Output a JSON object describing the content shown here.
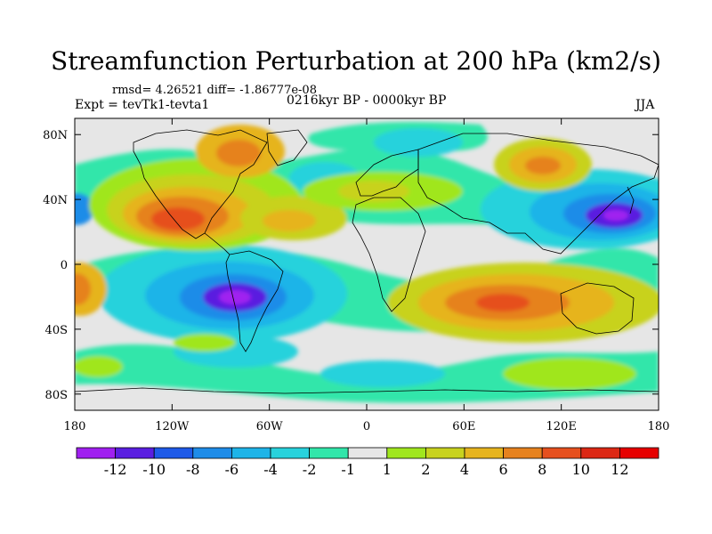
{
  "title": "Streamfunction Perturbation at 200 hPa (km2/s)",
  "stats": "rmsd= 4.26521 diff= -1.86777e-08",
  "experiment": "Expt = tevTk1-tevta1",
  "period": "0216kyr BP - 0000kyr BP",
  "season": "JJA",
  "chart_data": {
    "type": "heatmap",
    "projection": "cylindrical-equidistant",
    "x_ticks": [
      "180",
      "120W",
      "60W",
      "0",
      "60E",
      "120E",
      "180"
    ],
    "y_ticks": [
      "80N",
      "40N",
      "0",
      "40S",
      "80S"
    ],
    "x_range": [
      -180,
      180
    ],
    "y_range": [
      -90,
      90
    ],
    "colorbar": {
      "levels": [
        "-12",
        "-10",
        "-8",
        "-6",
        "-4",
        "-2",
        "-1",
        "1",
        "2",
        "4",
        "6",
        "8",
        "10",
        "12"
      ],
      "colors": [
        "#a020f0",
        "#5a1ee0",
        "#1e5ae8",
        "#1e8ce8",
        "#1eb4e8",
        "#28d2dc",
        "#32e6aa",
        "#e6e6e6",
        "#a0e61e",
        "#c8d21e",
        "#e6b41e",
        "#e6821e",
        "#e6501e",
        "#dc2814",
        "#e60000"
      ]
    },
    "features": [
      {
        "name": "south-america-low",
        "lon": -80,
        "lat": -22,
        "value": -12
      },
      {
        "name": "west-pacific-low",
        "lon": 155,
        "lat": 30,
        "value": -12
      },
      {
        "name": "north-america-high",
        "lon": -110,
        "lat": 30,
        "value": 10
      },
      {
        "name": "indian-ocean-high",
        "lon": 95,
        "lat": -20,
        "value": 8
      },
      {
        "name": "south-pacific-high-west",
        "lon": -175,
        "lat": -20,
        "value": 6
      },
      {
        "name": "central-asia-high",
        "lon": 90,
        "lat": 60,
        "value": 6
      },
      {
        "name": "atlantic-high",
        "lon": -30,
        "lat": 30,
        "value": 6
      },
      {
        "name": "north-atlantic-low",
        "lon": -50,
        "lat": 65,
        "value": -2
      },
      {
        "name": "eurasia-low",
        "lon": 30,
        "lat": 70,
        "value": -4
      },
      {
        "name": "southern-low",
        "lon": 0,
        "lat": -60,
        "value": -4
      }
    ]
  }
}
